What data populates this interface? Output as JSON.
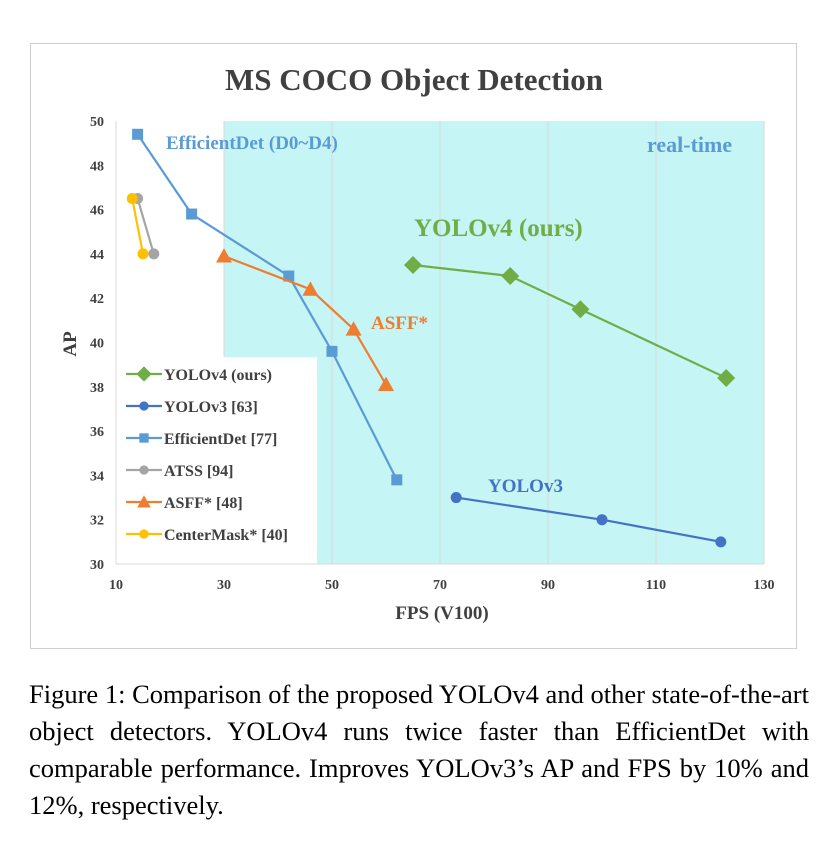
{
  "colors": {
    "yolov4": "#70AD47",
    "yolov3": "#4472C4",
    "efficientdet": "#5B9BD5",
    "atss": "#A5A5A5",
    "asff": "#ED7D31",
    "centermask": "#FFC000",
    "realtime_fill": "#C5F5F5",
    "title": "#404040",
    "axis_text": "#404040"
  },
  "chart_data": {
    "type": "line",
    "title": "MS COCO Object Detection",
    "xlabel": "FPS (V100)",
    "ylabel": "AP",
    "xlim": [
      10,
      130
    ],
    "ylim": [
      30,
      50
    ],
    "xticks": [
      "10",
      "30",
      "50",
      "70",
      "90",
      "110",
      "130"
    ],
    "yticks": [
      "30",
      "32",
      "34",
      "36",
      "38",
      "40",
      "42",
      "44",
      "46",
      "48",
      "50"
    ],
    "grid": "vertical",
    "realtime_region": {
      "x_from": 30,
      "x_to": 130,
      "label": "real-time"
    },
    "legend_position": "lower-left",
    "series": [
      {
        "name": "YOLOv4 (ours)",
        "marker": "diamond",
        "color_key": "yolov4",
        "points": [
          [
            65,
            43.5
          ],
          [
            83,
            43.0
          ],
          [
            96,
            41.5
          ],
          [
            123,
            38.4
          ]
        ]
      },
      {
        "name": "YOLOv3 [63]",
        "marker": "circle",
        "color_key": "yolov3",
        "points": [
          [
            73,
            33.0
          ],
          [
            100,
            32.0
          ],
          [
            122,
            31.0
          ]
        ]
      },
      {
        "name": "EfficientDet [77]",
        "marker": "square",
        "color_key": "efficientdet",
        "points": [
          [
            14,
            49.4
          ],
          [
            24,
            45.8
          ],
          [
            42,
            43.0
          ],
          [
            50,
            39.6
          ],
          [
            62,
            33.8
          ]
        ]
      },
      {
        "name": "ATSS [94]",
        "marker": "circle",
        "color_key": "atss",
        "points": [
          [
            14,
            46.5
          ],
          [
            17,
            44.0
          ]
        ]
      },
      {
        "name": "ASFF* [48]",
        "marker": "triangle",
        "color_key": "asff",
        "points": [
          [
            30,
            43.9
          ],
          [
            46,
            42.4
          ],
          [
            54,
            40.6
          ],
          [
            60,
            38.1
          ]
        ]
      },
      {
        "name": "CenterMask* [40]",
        "marker": "circle",
        "color_key": "centermask",
        "points": [
          [
            13,
            46.5
          ],
          [
            15,
            44.0
          ]
        ]
      }
    ],
    "annotations": [
      {
        "text": "EfficientDet (D0~D4)",
        "color_key": "efficientdet"
      },
      {
        "text": "real-time",
        "color_key": "efficientdet"
      },
      {
        "text": "YOLOv4 (ours)",
        "color_key": "yolov4"
      },
      {
        "text": "ASFF*",
        "color_key": "asff"
      },
      {
        "text": "YOLOv3",
        "color_key": "yolov3"
      }
    ]
  },
  "caption": "Figure 1: Comparison of the proposed YOLOv4 and other state-of-the-art object detectors. YOLOv4 runs twice faster than EfficientDet with comparable performance. Improves YOLOv3’s AP and FPS by 10% and 12%, respectively."
}
